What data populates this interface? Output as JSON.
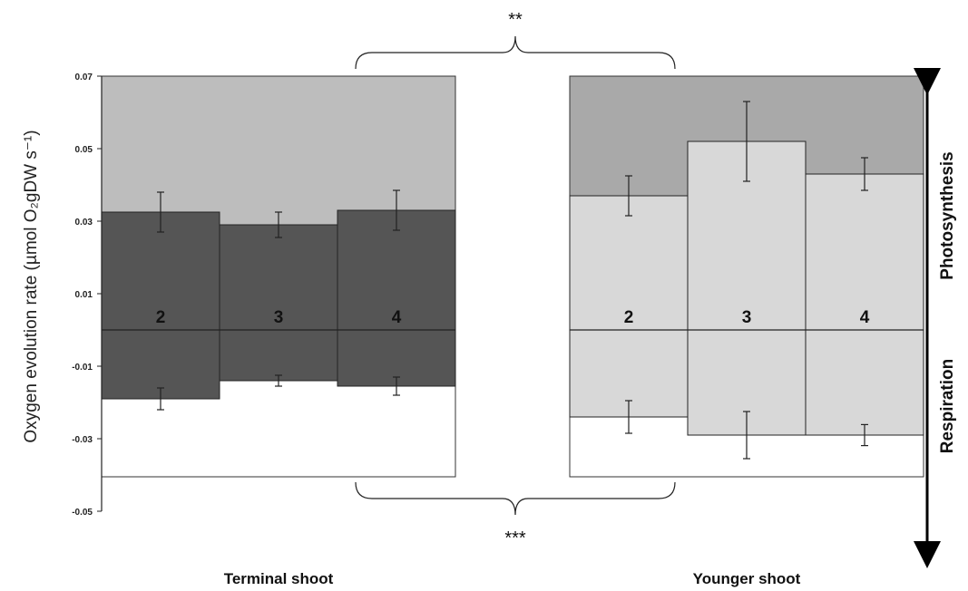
{
  "chart_data": {
    "type": "bar",
    "ylabel": "Oxygen evolution rate (µmol O₂gDW s⁻¹)",
    "ylim": [
      -0.05,
      0.07
    ],
    "yticks": [
      -0.05,
      -0.03,
      -0.01,
      0.01,
      0.03,
      0.05,
      0.07
    ],
    "ytick_labels": [
      "-0.05",
      "-0.03",
      "-0.01",
      "0.01",
      "0.03",
      "0.05",
      "0.07"
    ],
    "grid": false,
    "groups": [
      {
        "name": "Terminal shoot",
        "categories": [
          "2",
          "3",
          "4"
        ],
        "photosynthesis": [
          0.0325,
          0.029,
          0.033
        ],
        "photosynthesis_error": [
          0.0055,
          0.0035,
          0.0055
        ],
        "respiration": [
          -0.019,
          -0.014,
          -0.0155
        ],
        "respiration_error": [
          0.003,
          0.0015,
          0.0025
        ],
        "bar_color": "#555555",
        "panel_top_color": "#bdbdbd",
        "panel_bottom_color": "#ffffff"
      },
      {
        "name": "Younger shoot",
        "categories": [
          "2",
          "3",
          "4"
        ],
        "photosynthesis": [
          0.037,
          0.052,
          0.043
        ],
        "photosynthesis_error": [
          0.0055,
          0.011,
          0.0045
        ],
        "respiration": [
          -0.024,
          -0.029,
          -0.029
        ],
        "respiration_error": [
          0.0045,
          0.0065,
          0.0029
        ],
        "bar_color": "#d8d8d8",
        "panel_top_color": "#a9a9a9",
        "panel_bottom_color": "#ffffff"
      }
    ],
    "annotations": {
      "top_significance": "**",
      "bottom_significance": "***",
      "upper_side_label": "Photosynthesis",
      "lower_side_label": "Respiration"
    }
  }
}
